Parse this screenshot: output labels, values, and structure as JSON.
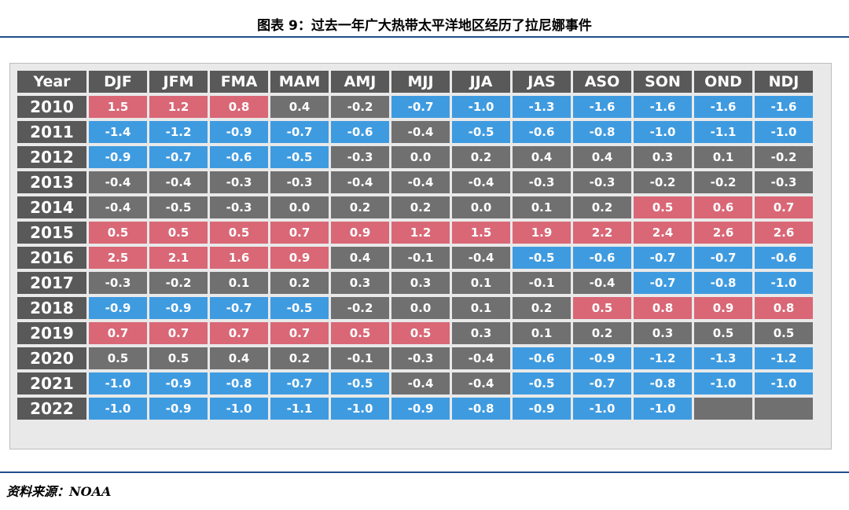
{
  "title": "图表 9：过去一年广大热带太平洋地区经历了拉尼娜事件",
  "source": "资料来源：NOAA",
  "colors": {
    "warm": "#d96776",
    "cool": "#3f9be0",
    "neutral": "#707070",
    "header": "#595959"
  },
  "chart_data": {
    "type": "table",
    "row_header": "Year",
    "columns": [
      "DJF",
      "JFM",
      "FMA",
      "MAM",
      "AMJ",
      "MJJ",
      "JJA",
      "JAS",
      "ASO",
      "SON",
      "OND",
      "NDJ"
    ],
    "rows": [
      {
        "year": "2010",
        "values": [
          "1.5",
          "1.2",
          "0.8",
          "0.4",
          "-0.2",
          "-0.7",
          "-1.0",
          "-1.3",
          "-1.6",
          "-1.6",
          "-1.6",
          "-1.6"
        ],
        "classes": [
          "warm",
          "warm",
          "warm",
          "neutral",
          "neutral",
          "cool",
          "cool",
          "cool",
          "cool",
          "cool",
          "cool",
          "cool"
        ]
      },
      {
        "year": "2011",
        "values": [
          "-1.4",
          "-1.2",
          "-0.9",
          "-0.7",
          "-0.6",
          "-0.4",
          "-0.5",
          "-0.6",
          "-0.8",
          "-1.0",
          "-1.1",
          "-1.0"
        ],
        "classes": [
          "cool",
          "cool",
          "cool",
          "cool",
          "cool",
          "neutral",
          "cool",
          "cool",
          "cool",
          "cool",
          "cool",
          "cool"
        ]
      },
      {
        "year": "2012",
        "values": [
          "-0.9",
          "-0.7",
          "-0.6",
          "-0.5",
          "-0.3",
          "0.0",
          "0.2",
          "0.4",
          "0.4",
          "0.3",
          "0.1",
          "-0.2"
        ],
        "classes": [
          "cool",
          "cool",
          "cool",
          "cool",
          "neutral",
          "neutral",
          "neutral",
          "neutral",
          "neutral",
          "neutral",
          "neutral",
          "neutral"
        ]
      },
      {
        "year": "2013",
        "values": [
          "-0.4",
          "-0.4",
          "-0.3",
          "-0.3",
          "-0.4",
          "-0.4",
          "-0.4",
          "-0.3",
          "-0.3",
          "-0.2",
          "-0.2",
          "-0.3"
        ],
        "classes": [
          "neutral",
          "neutral",
          "neutral",
          "neutral",
          "neutral",
          "neutral",
          "neutral",
          "neutral",
          "neutral",
          "neutral",
          "neutral",
          "neutral"
        ]
      },
      {
        "year": "2014",
        "values": [
          "-0.4",
          "-0.5",
          "-0.3",
          "0.0",
          "0.2",
          "0.2",
          "0.0",
          "0.1",
          "0.2",
          "0.5",
          "0.6",
          "0.7"
        ],
        "classes": [
          "neutral",
          "neutral",
          "neutral",
          "neutral",
          "neutral",
          "neutral",
          "neutral",
          "neutral",
          "neutral",
          "warm",
          "warm",
          "warm"
        ]
      },
      {
        "year": "2015",
        "values": [
          "0.5",
          "0.5",
          "0.5",
          "0.7",
          "0.9",
          "1.2",
          "1.5",
          "1.9",
          "2.2",
          "2.4",
          "2.6",
          "2.6"
        ],
        "classes": [
          "warm",
          "warm",
          "warm",
          "warm",
          "warm",
          "warm",
          "warm",
          "warm",
          "warm",
          "warm",
          "warm",
          "warm"
        ]
      },
      {
        "year": "2016",
        "values": [
          "2.5",
          "2.1",
          "1.6",
          "0.9",
          "0.4",
          "-0.1",
          "-0.4",
          "-0.5",
          "-0.6",
          "-0.7",
          "-0.7",
          "-0.6"
        ],
        "classes": [
          "warm",
          "warm",
          "warm",
          "warm",
          "neutral",
          "neutral",
          "neutral",
          "cool",
          "cool",
          "cool",
          "cool",
          "cool"
        ]
      },
      {
        "year": "2017",
        "values": [
          "-0.3",
          "-0.2",
          "0.1",
          "0.2",
          "0.3",
          "0.3",
          "0.1",
          "-0.1",
          "-0.4",
          "-0.7",
          "-0.8",
          "-1.0"
        ],
        "classes": [
          "neutral",
          "neutral",
          "neutral",
          "neutral",
          "neutral",
          "neutral",
          "neutral",
          "neutral",
          "neutral",
          "cool",
          "cool",
          "cool"
        ]
      },
      {
        "year": "2018",
        "values": [
          "-0.9",
          "-0.9",
          "-0.7",
          "-0.5",
          "-0.2",
          "0.0",
          "0.1",
          "0.2",
          "0.5",
          "0.8",
          "0.9",
          "0.8"
        ],
        "classes": [
          "cool",
          "cool",
          "cool",
          "cool",
          "neutral",
          "neutral",
          "neutral",
          "neutral",
          "warm",
          "warm",
          "warm",
          "warm"
        ]
      },
      {
        "year": "2019",
        "values": [
          "0.7",
          "0.7",
          "0.7",
          "0.7",
          "0.5",
          "0.5",
          "0.3",
          "0.1",
          "0.2",
          "0.3",
          "0.5",
          "0.5"
        ],
        "classes": [
          "warm",
          "warm",
          "warm",
          "warm",
          "warm",
          "warm",
          "neutral",
          "neutral",
          "neutral",
          "neutral",
          "neutral",
          "neutral"
        ]
      },
      {
        "year": "2020",
        "values": [
          "0.5",
          "0.5",
          "0.4",
          "0.2",
          "-0.1",
          "-0.3",
          "-0.4",
          "-0.6",
          "-0.9",
          "-1.2",
          "-1.3",
          "-1.2"
        ],
        "classes": [
          "neutral",
          "neutral",
          "neutral",
          "neutral",
          "neutral",
          "neutral",
          "neutral",
          "cool",
          "cool",
          "cool",
          "cool",
          "cool"
        ]
      },
      {
        "year": "2021",
        "values": [
          "-1.0",
          "-0.9",
          "-0.8",
          "-0.7",
          "-0.5",
          "-0.4",
          "-0.4",
          "-0.5",
          "-0.7",
          "-0.8",
          "-1.0",
          "-1.0"
        ],
        "classes": [
          "cool",
          "cool",
          "cool",
          "cool",
          "cool",
          "neutral",
          "neutral",
          "cool",
          "cool",
          "cool",
          "cool",
          "cool"
        ]
      },
      {
        "year": "2022",
        "values": [
          "-1.0",
          "-0.9",
          "-1.0",
          "-1.1",
          "-1.0",
          "-0.9",
          "-0.8",
          "-0.9",
          "-1.0",
          "-1.0",
          "",
          ""
        ],
        "classes": [
          "cool",
          "cool",
          "cool",
          "cool",
          "cool",
          "cool",
          "cool",
          "cool",
          "cool",
          "cool",
          "empty",
          "empty"
        ]
      }
    ]
  }
}
